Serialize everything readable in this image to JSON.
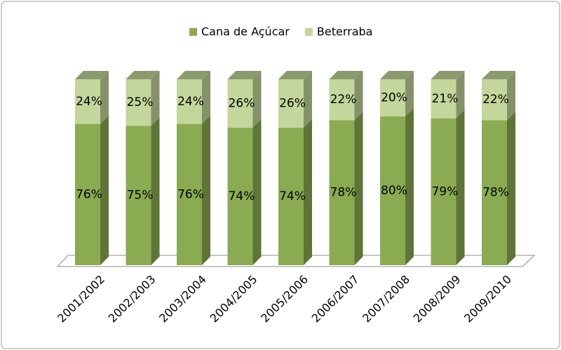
{
  "chart_data": {
    "type": "stacked_bar_3d",
    "categories": [
      "2001/2002",
      "2002/2003",
      "2003/2004",
      "2004/2005",
      "2005/2006",
      "2006/2007",
      "2007/2008",
      "2008/2009",
      "2009/2010"
    ],
    "series": [
      {
        "name": "Cana de Açúcar",
        "color": "#8aab52",
        "values": [
          76,
          75,
          76,
          74,
          74,
          78,
          80,
          79,
          78
        ],
        "value_labels": [
          "76%",
          "75%",
          "76%",
          "74%",
          "74%",
          "78%",
          "80%",
          "79%",
          "78%"
        ]
      },
      {
        "name": "Beterraba",
        "color": "#c3d69b",
        "values": [
          24,
          25,
          24,
          26,
          26,
          22,
          20,
          21,
          22
        ],
        "value_labels": [
          "24%",
          "25%",
          "24%",
          "26%",
          "26%",
          "22%",
          "20%",
          "21%",
          "22%"
        ]
      }
    ],
    "ylim": [
      0,
      100
    ],
    "legend": "top"
  }
}
